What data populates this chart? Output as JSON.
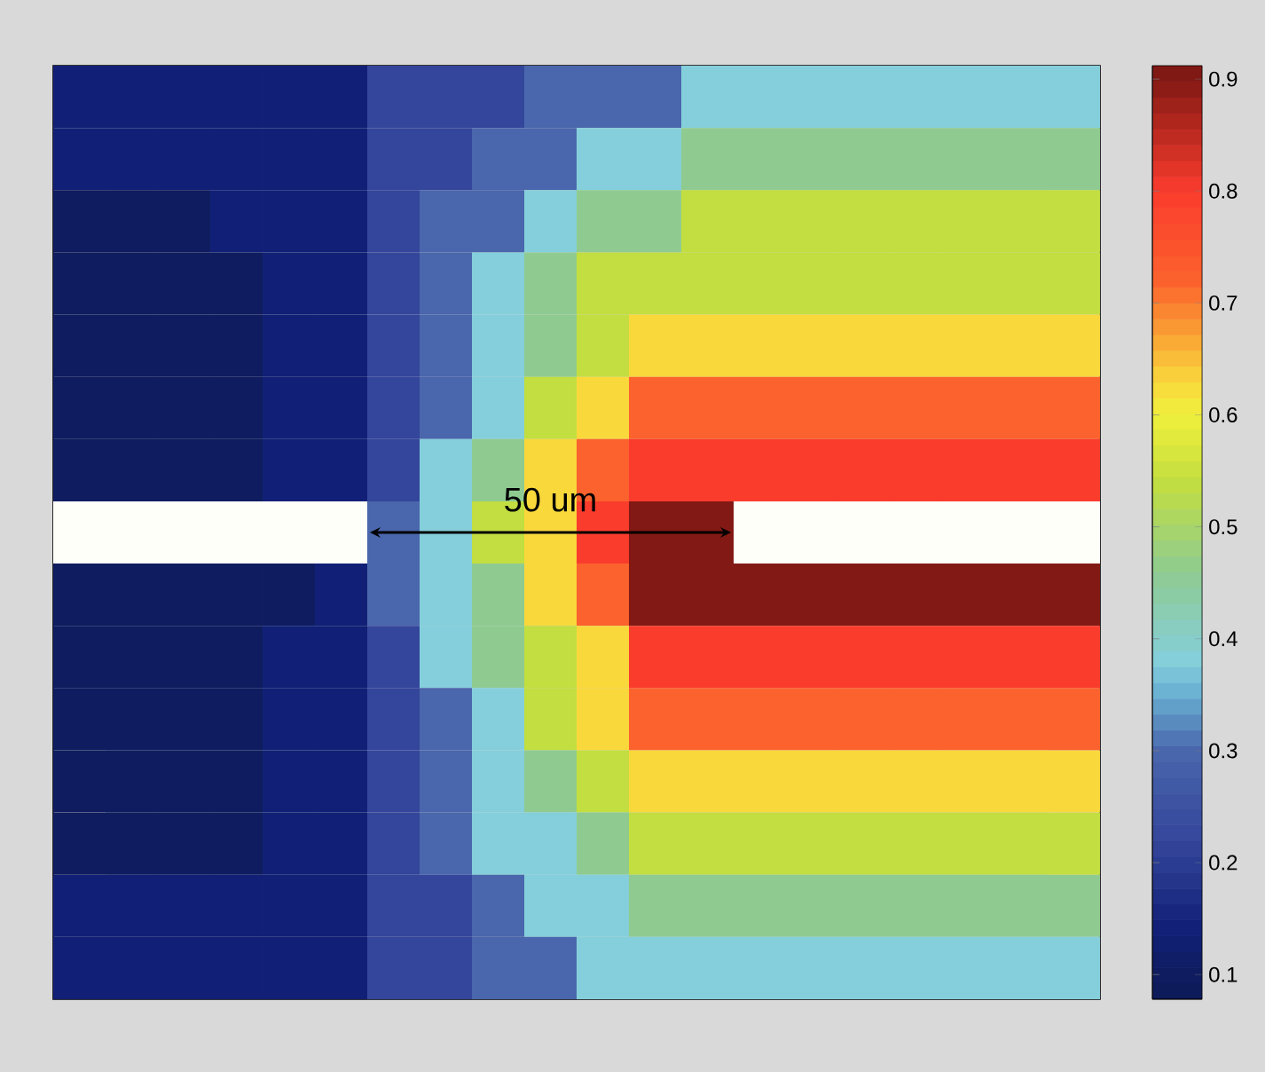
{
  "chart_data": {
    "type": "heatmap",
    "categories": [
      null,
      null,
      null,
      null,
      null,
      null,
      null,
      null,
      null,
      null,
      null,
      null,
      null,
      null,
      null,
      null,
      null,
      null,
      null,
      null
    ],
    "y_categories": [
      null,
      null,
      null,
      null,
      null,
      null,
      null,
      null,
      null,
      null,
      null,
      null,
      null,
      null,
      null
    ],
    "cells": [
      [
        0.14,
        0.14,
        0.14,
        0.14,
        0.14,
        0.14,
        0.22,
        0.22,
        0.22,
        0.3,
        0.3,
        0.3,
        0.38,
        0.38,
        0.38,
        0.38,
        0.38,
        0.38,
        0.38,
        0.38
      ],
      [
        0.14,
        0.14,
        0.14,
        0.14,
        0.14,
        0.14,
        0.22,
        0.22,
        0.3,
        0.3,
        0.38,
        0.38,
        0.46,
        0.46,
        0.46,
        0.46,
        0.46,
        0.46,
        0.46,
        0.46
      ],
      [
        0.1,
        0.1,
        0.1,
        0.14,
        0.14,
        0.14,
        0.22,
        0.3,
        0.3,
        0.38,
        0.46,
        0.46,
        0.54,
        0.54,
        0.54,
        0.54,
        0.54,
        0.54,
        0.54,
        0.54
      ],
      [
        0.1,
        0.1,
        0.1,
        0.1,
        0.14,
        0.14,
        0.22,
        0.3,
        0.38,
        0.46,
        0.54,
        0.54,
        0.54,
        0.54,
        0.54,
        0.54,
        0.54,
        0.54,
        0.54,
        0.54
      ],
      [
        0.1,
        0.1,
        0.1,
        0.1,
        0.14,
        0.14,
        0.22,
        0.3,
        0.38,
        0.46,
        0.54,
        0.63,
        0.63,
        0.63,
        0.63,
        0.63,
        0.63,
        0.63,
        0.63,
        0.63
      ],
      [
        0.1,
        0.1,
        0.1,
        0.1,
        0.14,
        0.14,
        0.22,
        0.3,
        0.38,
        0.54,
        0.63,
        0.72,
        0.72,
        0.72,
        0.72,
        0.72,
        0.72,
        0.72,
        0.72,
        0.72
      ],
      [
        0.1,
        0.1,
        0.1,
        0.1,
        0.14,
        0.14,
        0.22,
        0.38,
        0.46,
        0.63,
        0.72,
        0.8,
        0.8,
        0.8,
        0.8,
        0.8,
        0.8,
        0.8,
        0.8,
        0.8
      ],
      [
        null,
        null,
        null,
        null,
        null,
        null,
        0.3,
        0.38,
        0.54,
        0.63,
        0.8,
        0.9,
        0.9,
        null,
        null,
        null,
        null,
        null,
        null,
        null
      ],
      [
        0.1,
        0.1,
        0.1,
        0.1,
        0.1,
        0.14,
        0.3,
        0.38,
        0.46,
        0.63,
        0.72,
        0.9,
        0.9,
        0.9,
        0.9,
        0.9,
        0.9,
        0.9,
        0.9,
        0.9
      ],
      [
        0.1,
        0.1,
        0.1,
        0.1,
        0.14,
        0.14,
        0.22,
        0.38,
        0.46,
        0.54,
        0.63,
        0.8,
        0.8,
        0.8,
        0.8,
        0.8,
        0.8,
        0.8,
        0.8,
        0.8
      ],
      [
        0.1,
        0.1,
        0.1,
        0.1,
        0.14,
        0.14,
        0.22,
        0.3,
        0.38,
        0.54,
        0.63,
        0.72,
        0.72,
        0.72,
        0.72,
        0.72,
        0.72,
        0.72,
        0.72,
        0.72
      ],
      [
        0.1,
        0.1,
        0.1,
        0.1,
        0.14,
        0.14,
        0.22,
        0.3,
        0.38,
        0.46,
        0.54,
        0.63,
        0.63,
        0.63,
        0.63,
        0.63,
        0.63,
        0.63,
        0.63,
        0.63
      ],
      [
        0.1,
        0.1,
        0.1,
        0.1,
        0.14,
        0.14,
        0.22,
        0.3,
        0.38,
        0.38,
        0.46,
        0.54,
        0.54,
        0.54,
        0.54,
        0.54,
        0.54,
        0.54,
        0.54,
        0.54
      ],
      [
        0.14,
        0.14,
        0.14,
        0.14,
        0.14,
        0.14,
        0.22,
        0.22,
        0.3,
        0.38,
        0.38,
        0.46,
        0.46,
        0.46,
        0.46,
        0.46,
        0.46,
        0.46,
        0.46,
        0.46
      ],
      [
        0.14,
        0.14,
        0.14,
        0.14,
        0.14,
        0.14,
        0.22,
        0.22,
        0.3,
        0.3,
        0.38,
        0.38,
        0.38,
        0.38,
        0.38,
        0.38,
        0.38,
        0.38,
        0.38,
        0.38
      ]
    ],
    "clim": [
      0.078,
      0.912
    ],
    "cticks": [
      0.1,
      0.2,
      0.3,
      0.4,
      0.5,
      0.6,
      0.7,
      0.8,
      0.9
    ],
    "tick_labels": false,
    "annotations": [
      "50 um"
    ]
  }
}
